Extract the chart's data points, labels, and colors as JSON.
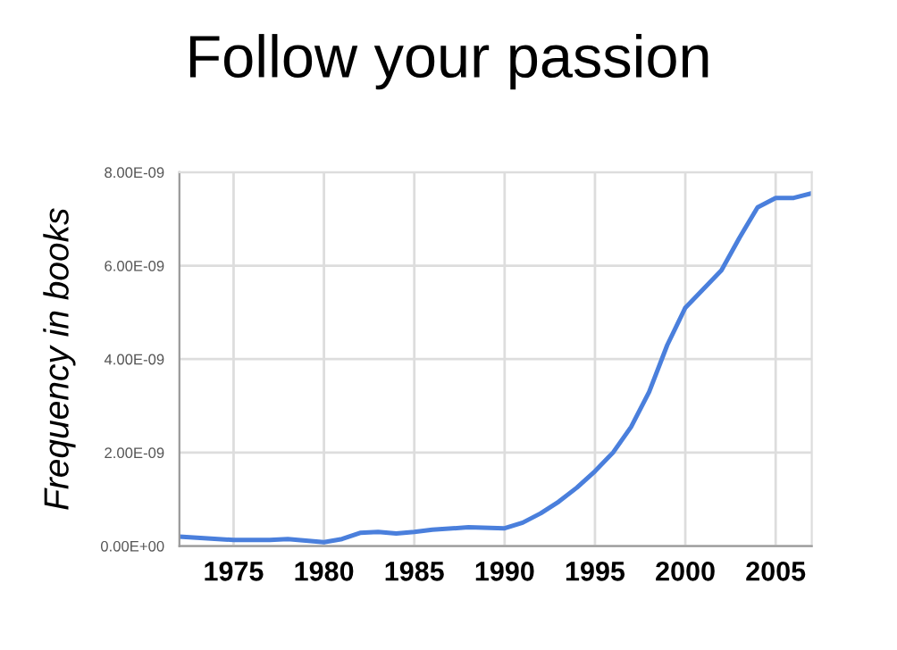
{
  "chart_data": {
    "type": "line",
    "title": "Follow your passion",
    "ylabel": "Frequency in books",
    "x": [
      1972,
      1975,
      1977,
      1978,
      1980,
      1981,
      1982,
      1983,
      1984,
      1985,
      1986,
      1988,
      1990,
      1991,
      1992,
      1993,
      1994,
      1995,
      1996,
      1997,
      1998,
      1999,
      2000,
      2001,
      2002,
      2003,
      2004,
      2005,
      2006,
      2007
    ],
    "series": [
      {
        "color": "#4a7fdc",
        "values": [
          2e-10,
          1.3e-10,
          1.3e-10,
          1.5e-10,
          8e-11,
          1.5e-10,
          2.8e-10,
          3e-10,
          2.7e-10,
          3e-10,
          3.5e-10,
          4e-10,
          3.8e-10,
          5e-10,
          7e-10,
          9.5e-10,
          1.25e-09,
          1.6e-09,
          2e-09,
          2.55e-09,
          3.3e-09,
          4.3e-09,
          5.1e-09,
          5.5e-09,
          5.9e-09,
          6.6e-09,
          7.25e-09,
          7.45e-09,
          7.45e-09,
          7.55e-09
        ]
      }
    ],
    "xlim": [
      1972,
      2007
    ],
    "xticks": [
      1975,
      1980,
      1985,
      1990,
      1995,
      2000,
      2005
    ],
    "ylim": [
      0,
      8e-09
    ],
    "yticks": [
      {
        "value": 0,
        "label": "0.00E+00"
      },
      {
        "value": 2e-09,
        "label": "2.00E-09"
      },
      {
        "value": 4e-09,
        "label": "4.00E-09"
      },
      {
        "value": 6e-09,
        "label": "6.00E-09"
      },
      {
        "value": 8e-09,
        "label": "8.00E-09"
      }
    ],
    "grid": true,
    "marker": "none",
    "line_style": "solid"
  }
}
